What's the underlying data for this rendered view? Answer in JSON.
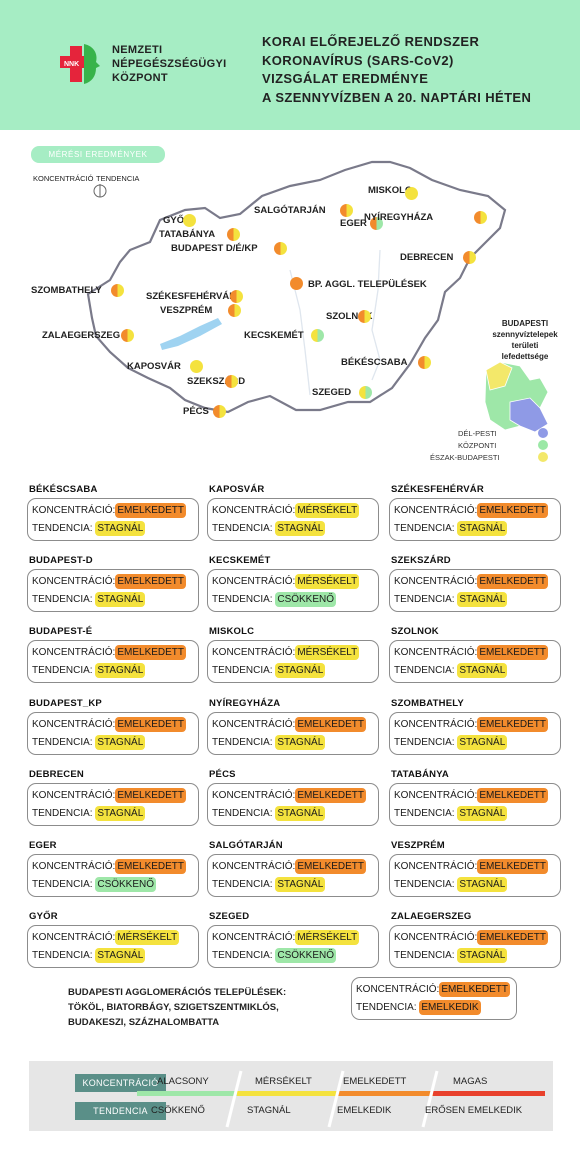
{
  "header": {
    "org_lines": [
      "NEMZETI",
      "NÉPEGÉSZSÉGÜGYI",
      "KÖZPONT"
    ],
    "logo_text": "NNK",
    "title_lines": [
      "KORAI ELŐREJELZŐ RENDSZER",
      "KORONAVÍRUS (SARS-CoV2)",
      "VIZSGÁLAT EREDMÉNYE",
      "A SZENNYVÍZBEN A 20. NAPTÁRI HÉTEN"
    ]
  },
  "map": {
    "badge": "MÉRÉSI EREDMÉNYEK",
    "legend_concentration": "KONCENTRÁCIÓ",
    "legend_trend": "TENDENCIA",
    "cities": [
      {
        "name": "MISKOLC",
        "left": "yellow",
        "right": "yellow"
      },
      {
        "name": "SALGÓTARJÁN",
        "left": "orange",
        "right": "yellow"
      },
      {
        "name": "EGER",
        "left": "orange",
        "right": "green"
      },
      {
        "name": "NYÍREGYHÁZA",
        "left": "orange",
        "right": "yellow"
      },
      {
        "name": "GYŐR",
        "left": "yellow",
        "right": "yellow"
      },
      {
        "name": "TATABÁNYA",
        "left": "orange",
        "right": "yellow"
      },
      {
        "name": "BUDAPEST D/É/KP",
        "left": "orange",
        "right": "yellow"
      },
      {
        "name": "DEBRECEN",
        "left": "orange",
        "right": "yellow"
      },
      {
        "name": "BP. AGGL. TELEPÜLÉSEK",
        "left": "orange",
        "right": "orange"
      },
      {
        "name": "SZOMBATHELY",
        "left": "orange",
        "right": "yellow"
      },
      {
        "name": "SZÉKESFEHÉRVÁR",
        "left": "orange",
        "right": "yellow"
      },
      {
        "name": "VESZPRÉM",
        "left": "orange",
        "right": "yellow"
      },
      {
        "name": "SZOLNOK",
        "left": "orange",
        "right": "yellow"
      },
      {
        "name": "ZALAEGERSZEG",
        "left": "orange",
        "right": "yellow"
      },
      {
        "name": "KECSKEMÉT",
        "left": "yellow",
        "right": "green"
      },
      {
        "name": "KAPOSVÁR",
        "left": "yellow",
        "right": "yellow"
      },
      {
        "name": "BÉKÉSCSABA",
        "left": "orange",
        "right": "yellow"
      },
      {
        "name": "SZEKSZÁRD",
        "left": "orange",
        "right": "yellow"
      },
      {
        "name": "SZEGED",
        "left": "yellow",
        "right": "green"
      },
      {
        "name": "PÉCS",
        "left": "orange",
        "right": "yellow"
      }
    ],
    "budapest_title": [
      "BUDAPESTI",
      "szennyvíztelepek",
      "területi",
      "lefedettsége"
    ],
    "budapest_legend": [
      {
        "label": "DÉL-PESTI",
        "color": "#8f9ae6"
      },
      {
        "label": "KÖZPONTI",
        "color": "#9be8a6"
      },
      {
        "label": "ÉSZAK-BUDAPESTI",
        "color": "#f3e86a"
      }
    ]
  },
  "colors": {
    "yellow": "#f4e23e",
    "orange": "#f28b2c",
    "green": "#9ee7a8",
    "header_bg": "#a6edc4"
  },
  "labels": {
    "concentration": "KONCENTRÁCIÓ:",
    "trend": "TENDENCIA:"
  },
  "cards": [
    {
      "name": "BÉKÉSCSABA",
      "conc": "EMELKEDETT",
      "conc_color": "orange",
      "trend": "STAGNÁL",
      "trend_color": "yellow"
    },
    {
      "name": "KAPOSVÁR",
      "conc": "MÉRSÉKELT",
      "conc_color": "yellow",
      "trend": "STAGNÁL",
      "trend_color": "yellow"
    },
    {
      "name": "SZÉKESFEHÉRVÁR",
      "conc": "EMELKEDETT",
      "conc_color": "orange",
      "trend": "STAGNÁL",
      "trend_color": "yellow"
    },
    {
      "name": "BUDAPEST-D",
      "conc": "EMELKEDETT",
      "conc_color": "orange",
      "trend": "STAGNÁL",
      "trend_color": "yellow"
    },
    {
      "name": "KECSKEMÉT",
      "conc": "MÉRSÉKELT",
      "conc_color": "yellow",
      "trend": "CSÖKKENŐ",
      "trend_color": "green"
    },
    {
      "name": "SZEKSZÁRD",
      "conc": "EMELKEDETT",
      "conc_color": "orange",
      "trend": "STAGNÁL",
      "trend_color": "yellow"
    },
    {
      "name": "BUDAPEST-É",
      "conc": "EMELKEDETT",
      "conc_color": "orange",
      "trend": "STAGNÁL",
      "trend_color": "yellow"
    },
    {
      "name": "MISKOLC",
      "conc": "MÉRSÉKELT",
      "conc_color": "yellow",
      "trend": "STAGNÁL",
      "trend_color": "yellow"
    },
    {
      "name": "SZOLNOK",
      "conc": "EMELKEDETT",
      "conc_color": "orange",
      "trend": "STAGNÁL",
      "trend_color": "yellow"
    },
    {
      "name": "BUDAPEST_KP",
      "conc": "EMELKEDETT",
      "conc_color": "orange",
      "trend": "STAGNÁL",
      "trend_color": "yellow"
    },
    {
      "name": "NYÍREGYHÁZA",
      "conc": "EMELKEDETT",
      "conc_color": "orange",
      "trend": "STAGNÁL",
      "trend_color": "yellow"
    },
    {
      "name": "SZOMBATHELY",
      "conc": "EMELKEDETT",
      "conc_color": "orange",
      "trend": "STAGNÁL",
      "trend_color": "yellow"
    },
    {
      "name": "DEBRECEN",
      "conc": "EMELKEDETT",
      "conc_color": "orange",
      "trend": "STAGNÁL",
      "trend_color": "yellow"
    },
    {
      "name": "PÉCS",
      "conc": "EMELKEDETT",
      "conc_color": "orange",
      "trend": "STAGNÁL",
      "trend_color": "yellow"
    },
    {
      "name": "TATABÁNYA",
      "conc": "EMELKEDETT",
      "conc_color": "orange",
      "trend": "STAGNÁL",
      "trend_color": "yellow"
    },
    {
      "name": "EGER",
      "conc": "EMELKEDETT",
      "conc_color": "orange",
      "trend": "CSÖKKENŐ",
      "trend_color": "green"
    },
    {
      "name": "SALGÓTARJÁN",
      "conc": "EMELKEDETT",
      "conc_color": "orange",
      "trend": "STAGNÁL",
      "trend_color": "yellow"
    },
    {
      "name": "VESZPRÉM",
      "conc": "EMELKEDETT",
      "conc_color": "orange",
      "trend": "STAGNÁL",
      "trend_color": "yellow"
    },
    {
      "name": "GYŐR",
      "conc": "MÉRSÉKELT",
      "conc_color": "yellow",
      "trend": "STAGNÁL",
      "trend_color": "yellow"
    },
    {
      "name": "SZEGED",
      "conc": "MÉRSÉKELT",
      "conc_color": "yellow",
      "trend": "CSÖKKENŐ",
      "trend_color": "green"
    },
    {
      "name": "ZALAEGERSZEG",
      "conc": "EMELKEDETT",
      "conc_color": "orange",
      "trend": "STAGNÁL",
      "trend_color": "yellow"
    }
  ],
  "agglomeration": {
    "lines": [
      "BUDAPESTI AGGLOMERÁCIÓS TELEPÜLÉSEK:",
      "TÖKÖL, BIATORBÁGY, SZIGETSZENTMIKLÓS,",
      "BUDAKESZI, SZÁZHALOMBATTA"
    ],
    "conc": "EMELKEDETT",
    "conc_color": "orange",
    "trend": "EMELKEDIK",
    "trend_color": "orange"
  },
  "scale": {
    "concentration_label": "KONCENTRÁCIÓ",
    "trend_label": "TENDENCIA",
    "concentration_levels": [
      {
        "label": "ALACSONY",
        "color": "#9ee7a8"
      },
      {
        "label": "MÉRSÉKELT",
        "color": "#f4e23e"
      },
      {
        "label": "EMELKEDETT",
        "color": "#f28b2c"
      },
      {
        "label": "MAGAS",
        "color": "#e8412c"
      }
    ],
    "trend_levels": [
      "CSÖKKENŐ",
      "STAGNÁL",
      "EMELKEDIK",
      "ERŐSEN EMELKEDIK"
    ]
  }
}
